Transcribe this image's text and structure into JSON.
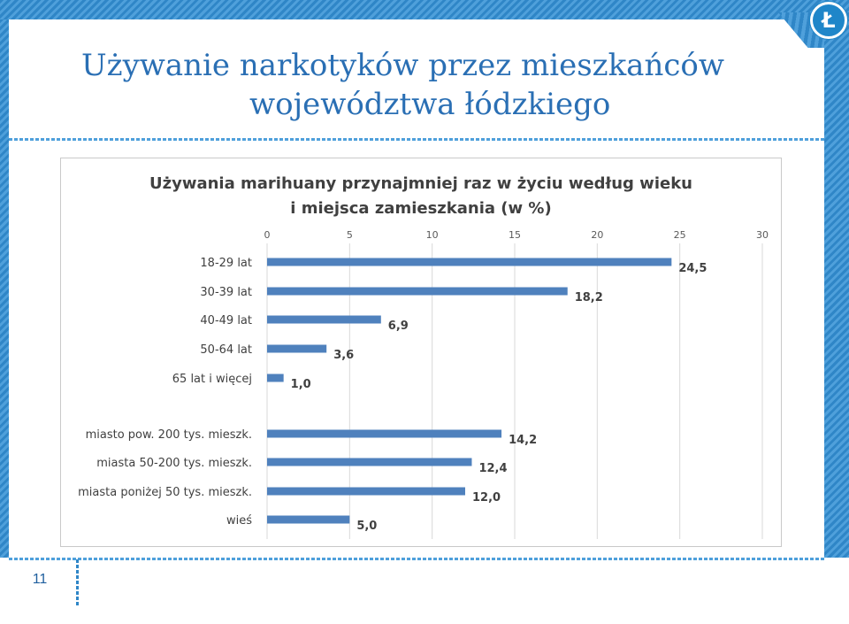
{
  "slide": {
    "title_line1": "Używanie narkotyków przez mieszkańców",
    "title_line2": "województwa łódzkiego",
    "page_number": "11",
    "logo_glyph": "Ł",
    "accent_color": "#2a6fb4"
  },
  "chart_data": {
    "type": "bar",
    "orientation": "horizontal",
    "title": "Używania marihuany przynajmniej raz w życiu według wieku i miejsca zamieszkania (w %)",
    "title_lines": [
      "Używania marihuany przynajmniej raz w życiu według wieku",
      "i miejsca zamieszkania (w %)"
    ],
    "xlim": [
      0,
      30
    ],
    "x_ticks": [
      "0",
      "5",
      "10",
      "15",
      "20",
      "25",
      "30"
    ],
    "grid": true,
    "bar_color": "#4f81bd",
    "groups": [
      {
        "categories": [
          "18-29 lat",
          "30-39 lat",
          "40-49 lat",
          "50-64 lat",
          "65 lat i więcej"
        ],
        "values": [
          24.5,
          18.2,
          6.9,
          3.6,
          1.0
        ],
        "labels": [
          "24,5",
          "18,2",
          "6,9",
          "3,6",
          "1,0"
        ]
      },
      {
        "categories": [
          "miasto pow. 200 tys. mieszk.",
          "miasta 50-200 tys. mieszk.",
          "miasta poniżej 50 tys. mieszk.",
          "wieś"
        ],
        "values": [
          14.2,
          12.4,
          12.0,
          5.0
        ],
        "labels": [
          "14,2",
          "12,4",
          "12,0",
          "5,0"
        ]
      }
    ]
  }
}
